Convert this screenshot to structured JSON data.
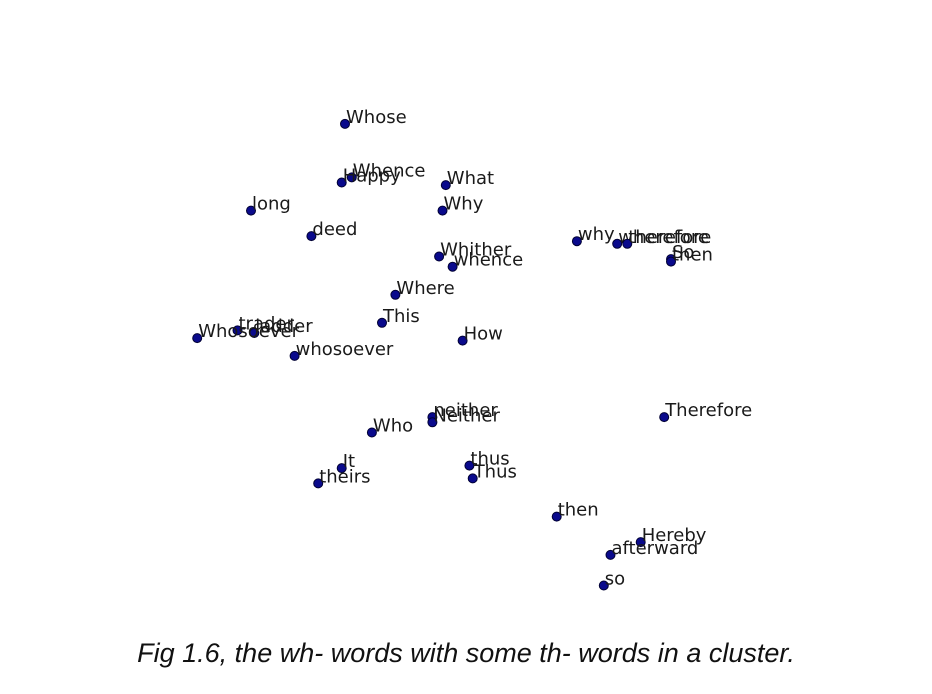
{
  "caption": "Fig 1.6, the wh- words with some th- words in a cluster.",
  "chart_data": {
    "type": "scatter",
    "title": "",
    "xlabel": "",
    "ylabel": "",
    "axes_visible": false,
    "grid": false,
    "xlim": [
      0,
      100
    ],
    "ylim": [
      0,
      100
    ],
    "colors": {
      "point": "#0a0a8c",
      "text": "#1a1a1a"
    },
    "points": [
      {
        "label": "Whose",
        "x": 32.0,
        "y": 91.0
      },
      {
        "label": "Whence",
        "x": 33.0,
        "y": 80.5
      },
      {
        "label": "Happy",
        "x": 31.5,
        "y": 79.5
      },
      {
        "label": "What",
        "x": 47.0,
        "y": 79.0
      },
      {
        "label": "long",
        "x": 18.0,
        "y": 74.0
      },
      {
        "label": "Why",
        "x": 46.5,
        "y": 74.0
      },
      {
        "label": "deed",
        "x": 27.0,
        "y": 69.0
      },
      {
        "label": "why",
        "x": 66.5,
        "y": 68.0
      },
      {
        "label": "wherefore",
        "x": 72.5,
        "y": 67.5
      },
      {
        "label": "therefore",
        "x": 74.0,
        "y": 67.5
      },
      {
        "label": "So",
        "x": 80.5,
        "y": 64.5
      },
      {
        "label": "then",
        "x": 80.5,
        "y": 64.0
      },
      {
        "label": "Whither",
        "x": 46.0,
        "y": 65.0
      },
      {
        "label": "whence",
        "x": 48.0,
        "y": 63.0
      },
      {
        "label": "Where",
        "x": 39.5,
        "y": 57.5
      },
      {
        "label": "This",
        "x": 37.5,
        "y": 52.0
      },
      {
        "label": "trader",
        "x": 16.0,
        "y": 50.5
      },
      {
        "label": "ladder",
        "x": 18.5,
        "y": 50.0
      },
      {
        "label": "Whosoever",
        "x": 10.0,
        "y": 49.0
      },
      {
        "label": "How",
        "x": 49.5,
        "y": 48.5
      },
      {
        "label": "whosoever",
        "x": 24.5,
        "y": 45.5
      },
      {
        "label": "neither",
        "x": 45.0,
        "y": 33.5
      },
      {
        "label": "Neither",
        "x": 45.0,
        "y": 32.5
      },
      {
        "label": "Therefore",
        "x": 79.5,
        "y": 33.5
      },
      {
        "label": "Who",
        "x": 36.0,
        "y": 30.5
      },
      {
        "label": "It",
        "x": 31.5,
        "y": 23.5
      },
      {
        "label": "theirs",
        "x": 28.0,
        "y": 20.5
      },
      {
        "label": "thus",
        "x": 50.5,
        "y": 24.0
      },
      {
        "label": "Thus",
        "x": 51.0,
        "y": 21.5
      },
      {
        "label": "then",
        "x": 63.5,
        "y": 14.0
      },
      {
        "label": "Hereby",
        "x": 76.0,
        "y": 9.0
      },
      {
        "label": "afterward",
        "x": 71.5,
        "y": 6.5
      },
      {
        "label": "so",
        "x": 70.5,
        "y": 0.5
      }
    ]
  }
}
